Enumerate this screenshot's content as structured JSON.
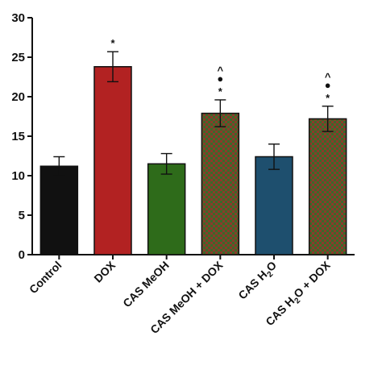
{
  "chart_data": {
    "type": "bar",
    "title": "",
    "xlabel": "",
    "ylabel": "",
    "ylim": [
      0,
      30
    ],
    "yticks": [
      0,
      5,
      10,
      15,
      20,
      25,
      30
    ],
    "grid": false,
    "categories": [
      {
        "text": "Control"
      },
      {
        "text": "DOX"
      },
      {
        "text": "CAS MeOH"
      },
      {
        "text": "CAS MeOH + DOX"
      },
      {
        "text": "CAS H",
        "sub": "2",
        "after": "O"
      },
      {
        "text": "CAS H",
        "sub": "2",
        "after": "O + DOX"
      }
    ],
    "values": [
      11.2,
      23.8,
      11.5,
      17.9,
      12.4,
      17.2
    ],
    "errors": [
      1.2,
      1.9,
      1.3,
      1.7,
      1.6,
      1.6
    ],
    "bar_colors": [
      "#111111",
      "#b22222",
      "#2e6b1a",
      "#8b3a2a",
      "#1e4f6e",
      "#8b3a2a"
    ],
    "patterned": [
      false,
      false,
      false,
      true,
      false,
      true
    ],
    "markers": [
      [],
      [
        "*"
      ],
      [],
      [
        "^",
        "●",
        "*"
      ],
      [],
      [
        "^",
        "●",
        "*"
      ]
    ]
  }
}
